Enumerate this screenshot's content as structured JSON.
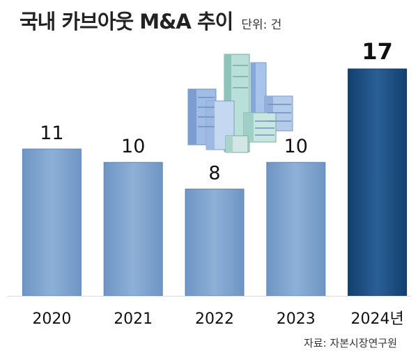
{
  "title": "국내 카브아웃 M&A 추이",
  "unit": "단위: 건",
  "source": "자료: 자본시장연구원",
  "chart_data": {
    "type": "bar",
    "categories": [
      "2020",
      "2021",
      "2022",
      "2023",
      "2024년"
    ],
    "values": [
      11,
      10,
      8,
      10,
      17
    ],
    "title": "국내 카브아웃 M&A 추이",
    "xlabel": "",
    "ylabel": "",
    "ylim": [
      0,
      17
    ],
    "grid": false,
    "colors": {
      "bar_light": "#7fa3cf",
      "bar_light_edge": "#5d86b8",
      "bar_highlight": "#174a7e",
      "bar_highlight_edge": "#0f3763",
      "value_text": "#111111",
      "axis_line": "#cfd6de"
    },
    "highlight_index": 4
  },
  "illustration": {
    "icon": "buildings-icon"
  }
}
